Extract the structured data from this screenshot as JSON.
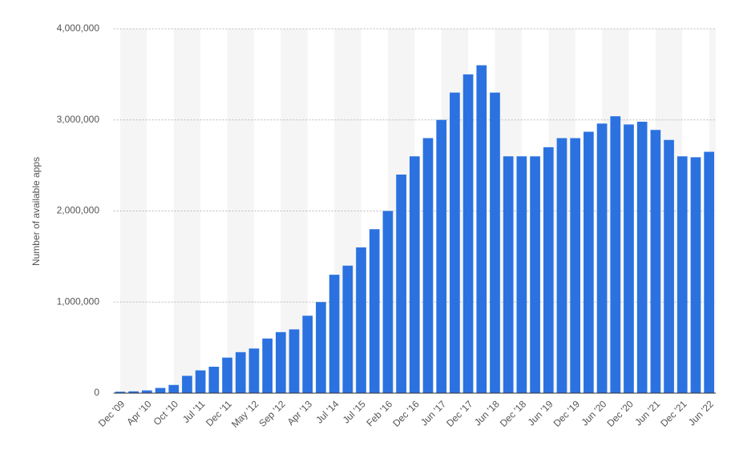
{
  "chart_data": {
    "type": "bar",
    "y_label": "Number of available apps",
    "categories": [
      "Dec '09",
      null,
      "Apr '10",
      null,
      "Oct '10",
      null,
      "Jul '11",
      null,
      "Dec '11",
      null,
      "May '12",
      null,
      "Sep '12",
      null,
      "Apr '13",
      null,
      "Jul '14",
      null,
      "Jul '15",
      null,
      "Feb '16",
      null,
      "Dec '16",
      null,
      "Jun '17",
      null,
      "Dec '17",
      null,
      "Jun '18",
      null,
      "Dec '18",
      null,
      "Jun '19",
      null,
      "Dec '19",
      null,
      "Jun '20",
      null,
      "Dec '20",
      null,
      "Jun '21",
      null,
      "Dec '21",
      null,
      "Jun '22"
    ],
    "values": [
      16000,
      20000,
      30000,
      57000,
      90000,
      190000,
      250000,
      290000,
      390000,
      450000,
      490000,
      600000,
      670000,
      700000,
      850000,
      1000000,
      1300000,
      1400000,
      1600000,
      1800000,
      2000000,
      2400000,
      2600000,
      2800000,
      3000000,
      3300000,
      3500000,
      3600000,
      3300000,
      2600000,
      2600000,
      2600000,
      2700000,
      2800000,
      2800000,
      2870000,
      2960000,
      3040000,
      2950000,
      2980000,
      2890000,
      2780000,
      2600000,
      2590000,
      2650000
    ],
    "color": "#2b72e0",
    "ylim": [
      0,
      4000000
    ],
    "yticks": [
      0,
      {
        "value": 1000000,
        "label": "1,000,000"
      },
      {
        "value": 2000000,
        "label": "2,000,000"
      },
      {
        "value": 3000000,
        "label": "3,000,000"
      },
      {
        "value": 4000000,
        "label": "4,000,000"
      }
    ],
    "grid": true
  }
}
